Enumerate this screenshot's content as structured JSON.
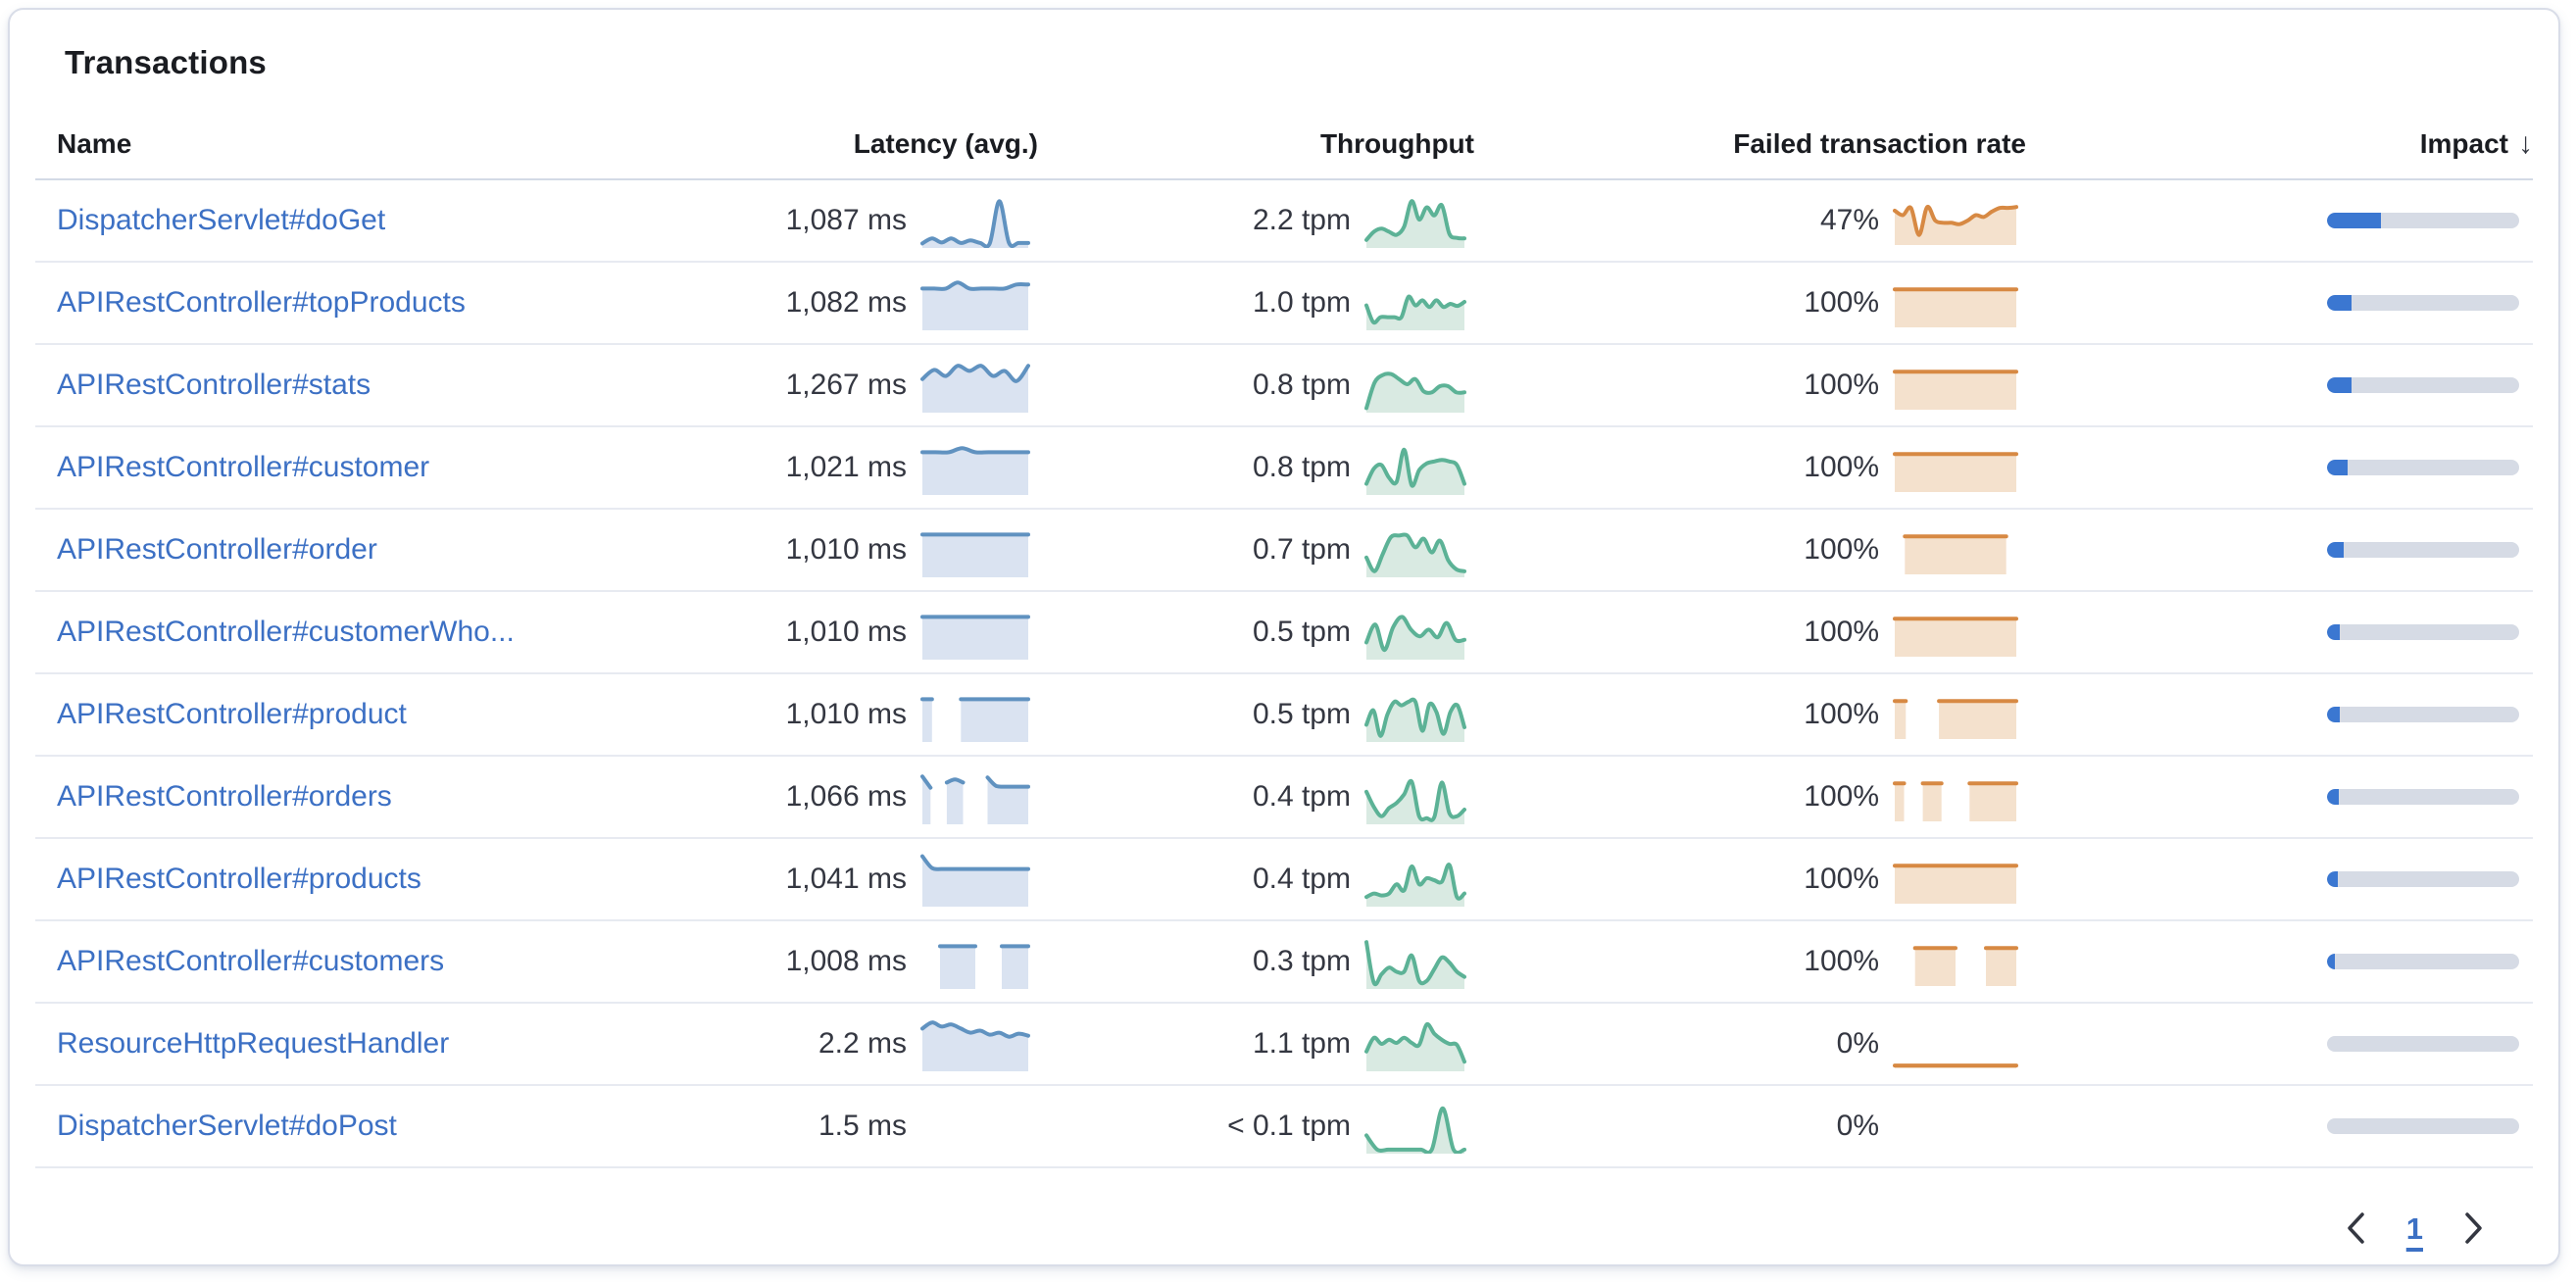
{
  "title": "Transactions",
  "columns": {
    "name": "Name",
    "latency": "Latency (avg.)",
    "throughput": "Throughput",
    "failed": "Failed transaction rate",
    "impact": "Impact",
    "impact_sort_arrow": "↓"
  },
  "colors": {
    "link": "#3c70c4",
    "text": "#343741",
    "latency_line": "#6092c0",
    "latency_fill": "#dae3f1",
    "throughput_line": "#5cb296",
    "throughput_fill": "#d9eae2",
    "failed_line": "#d78943",
    "failed_fill": "#f4e1cd",
    "impact_fill": "#3b77d1",
    "impact_track": "#d6dbe5"
  },
  "pagination": {
    "current_page": "1"
  },
  "rows": [
    {
      "name": "DispatcherServlet#doGet",
      "latency": "1,087 ms",
      "throughput": "2.2 tpm",
      "failed_rate": "47%",
      "impact_pct": 28,
      "latency_series": [
        5,
        15,
        7,
        15,
        6,
        11,
        6,
        5,
        88,
        6,
        6,
        6
      ],
      "throughput_series": [
        12,
        28,
        34,
        28,
        22,
        38,
        88,
        52,
        76,
        60,
        80,
        24,
        16,
        15
      ],
      "failed_series": [
        72,
        62,
        78,
        18,
        80,
        50,
        45,
        45,
        42,
        50,
        62,
        58,
        70,
        78,
        78,
        80
      ]
    },
    {
      "name": "APIRestController#topProducts",
      "latency": "1,082 ms",
      "throughput": "1.0 tpm",
      "failed_rate": "100%",
      "impact_pct": 12.5,
      "latency_series": [
        78,
        78,
        78,
        90,
        78,
        78,
        78,
        78,
        86,
        86
      ],
      "throughput_series": [
        45,
        12,
        22,
        22,
        22,
        22,
        62,
        45,
        55,
        42,
        55,
        42,
        48,
        44,
        52
      ],
      "failed_series": [
        80,
        80,
        80,
        80,
        80,
        80,
        80,
        80,
        80,
        80
      ]
    },
    {
      "name": "APIRestController#stats",
      "latency": "1,267 ms",
      "throughput": "0.8 tpm",
      "failed_rate": "100%",
      "impact_pct": 12.5,
      "latency_series": [
        62,
        80,
        68,
        88,
        78,
        88,
        68,
        78,
        58,
        88
      ],
      "throughput_series": [
        5,
        55,
        70,
        72,
        62,
        52,
        62,
        38,
        36,
        48,
        48,
        36,
        36
      ],
      "failed_series": [
        80,
        80,
        80,
        80,
        80,
        80,
        80,
        80,
        80,
        80
      ]
    },
    {
      "name": "APIRestController#customer",
      "latency": "1,021 ms",
      "throughput": "0.8 tpm",
      "failed_rate": "100%",
      "impact_pct": 10.5,
      "latency_series": [
        80,
        80,
        80,
        88,
        80,
        80,
        80,
        80,
        80
      ],
      "throughput_series": [
        18,
        48,
        55,
        30,
        22,
        85,
        15,
        45,
        58,
        62,
        65,
        62,
        55,
        18
      ],
      "failed_series": [
        80,
        80,
        80,
        80,
        80,
        80,
        80,
        80,
        80,
        80
      ]
    },
    {
      "name": "APIRestController#order",
      "latency": "1,010 ms",
      "throughput": "0.7 tpm",
      "failed_rate": "100%",
      "impact_pct": 8.5,
      "latency_series": [
        80,
        80,
        80,
        80,
        80,
        80,
        80,
        80,
        80,
        80
      ],
      "throughput_series": [
        35,
        8,
        42,
        75,
        78,
        78,
        55,
        72,
        45,
        68,
        30,
        12,
        8
      ],
      "failed_series": [
        null,
        80,
        80,
        80,
        80,
        80,
        80,
        80,
        80,
        80,
        80,
        80,
        null
      ]
    },
    {
      "name": "APIRestController#customerWho...",
      "latency": "1,010 ms",
      "throughput": "0.5 tpm",
      "failed_rate": "100%",
      "impact_pct": 6.5,
      "latency_series": [
        80,
        80,
        80,
        80,
        80,
        80,
        80,
        80,
        80,
        80
      ],
      "throughput_series": [
        30,
        65,
        15,
        60,
        80,
        55,
        42,
        55,
        40,
        68,
        35,
        35
      ],
      "failed_series": [
        80,
        80,
        80,
        80,
        80,
        80,
        80,
        80,
        80,
        80
      ]
    },
    {
      "name": "APIRestController#product",
      "latency": "1,010 ms",
      "throughput": "0.5 tpm",
      "failed_rate": "100%",
      "impact_pct": 6.5,
      "latency_series": [
        80,
        80,
        null,
        null,
        80,
        80,
        80,
        80,
        80,
        80,
        80,
        80
      ],
      "throughput_series": [
        30,
        58,
        8,
        50,
        75,
        68,
        75,
        75,
        18,
        70,
        55,
        12,
        55,
        68,
        25
      ],
      "failed_series": [
        80,
        80,
        null,
        null,
        80,
        80,
        80,
        80,
        80,
        80,
        80,
        80
      ]
    },
    {
      "name": "APIRestController#orders",
      "latency": "1,066 ms",
      "throughput": "0.4 tpm",
      "failed_rate": "100%",
      "impact_pct": 6,
      "latency_series": [
        90,
        68,
        null,
        78,
        84,
        78,
        null,
        null,
        88,
        72,
        70,
        70,
        70,
        70
      ],
      "throughput_series": [
        60,
        30,
        12,
        28,
        38,
        55,
        80,
        12,
        8,
        10,
        78,
        18,
        12,
        25
      ],
      "failed_series": [
        80,
        80,
        null,
        80,
        80,
        80,
        null,
        null,
        80,
        80,
        80,
        80,
        80,
        80
      ]
    },
    {
      "name": "APIRestController#products",
      "latency": "1,041 ms",
      "throughput": "0.4 tpm",
      "failed_rate": "100%",
      "impact_pct": 5.5,
      "latency_series": [
        95,
        72,
        70,
        70,
        70,
        70,
        70,
        70,
        70,
        70,
        70,
        70
      ],
      "throughput_series": [
        15,
        22,
        18,
        22,
        40,
        28,
        75,
        40,
        52,
        48,
        45,
        78,
        15,
        22
      ],
      "failed_series": [
        80,
        80,
        80,
        80,
        80,
        80,
        80,
        80,
        80,
        80
      ]
    },
    {
      "name": "APIRestController#customers",
      "latency": "1,008 ms",
      "throughput": "0.3 tpm",
      "failed_rate": "100%",
      "impact_pct": 4,
      "latency_series": [
        null,
        null,
        80,
        80,
        80,
        80,
        80,
        null,
        null,
        80,
        80,
        80,
        80
      ],
      "throughput_series": [
        88,
        8,
        25,
        38,
        30,
        30,
        62,
        12,
        12,
        35,
        58,
        48,
        30,
        20
      ],
      "failed_series": [
        null,
        null,
        80,
        80,
        80,
        80,
        80,
        null,
        null,
        80,
        80,
        80,
        80
      ]
    },
    {
      "name": "ResourceHttpRequestHandler",
      "latency": "2.2 ms",
      "throughput": "1.1 tpm",
      "failed_rate": "0%",
      "impact_pct": 0,
      "latency_series": [
        80,
        92,
        84,
        88,
        80,
        72,
        76,
        68,
        72,
        64,
        70,
        66
      ],
      "throughput_series": [
        35,
        62,
        50,
        58,
        52,
        62,
        52,
        48,
        88,
        70,
        58,
        50,
        48,
        15
      ],
      "failed_series": [
        2,
        2,
        2,
        2,
        2,
        2,
        2,
        2,
        2,
        2
      ]
    },
    {
      "name": "DispatcherServlet#doPost",
      "latency": "1.5 ms",
      "throughput": "< 0.1 tpm",
      "failed_rate": "0%",
      "impact_pct": 0,
      "latency_series": [],
      "throughput_series": [
        32,
        4,
        4,
        4,
        4,
        4,
        4,
        85,
        4,
        4
      ],
      "failed_series": []
    }
  ]
}
